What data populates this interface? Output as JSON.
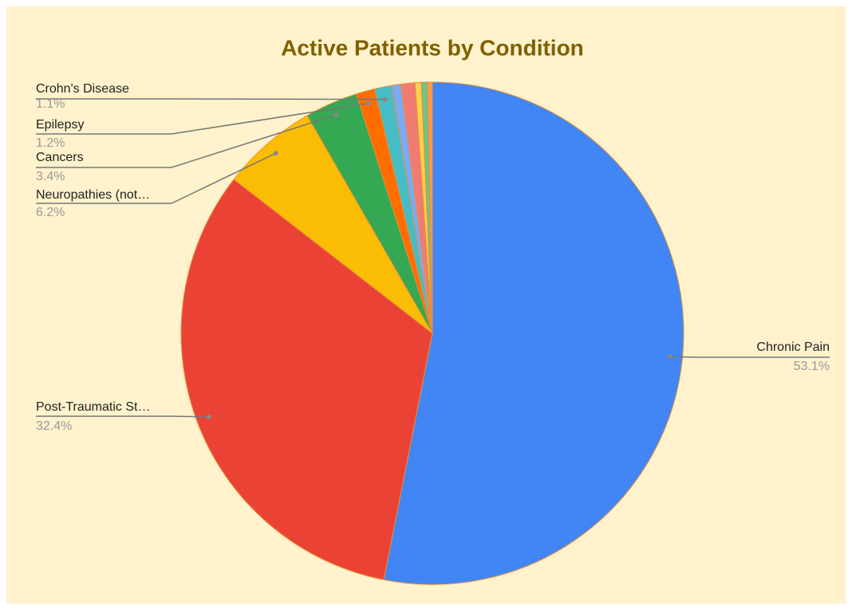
{
  "chart_data": {
    "type": "pie",
    "title": "Active Patients by Condition",
    "categories": [
      "Chronic Pain",
      "Post-Traumatic St…",
      "Neuropathies (not…",
      "Cancers",
      "Epilepsy",
      "Crohn's Disease",
      null,
      null,
      null,
      null,
      null
    ],
    "values": [
      53.1,
      32.4,
      6.2,
      3.4,
      1.2,
      1.1,
      0.6,
      0.9,
      0.4,
      0.4,
      0.3
    ],
    "value_labels": [
      "53.1%",
      "32.4%",
      "6.2%",
      "3.4%",
      "1.2%",
      "1.1%",
      null,
      null,
      null,
      null,
      null
    ],
    "colors": [
      "#4285f4",
      "#ea4335",
      "#fbbc04",
      "#34a853",
      "#ff6d01",
      "#46bdc6",
      "#7baaf7",
      "#f07b72",
      "#fcd04f",
      "#71c287",
      "#ff994d"
    ]
  }
}
